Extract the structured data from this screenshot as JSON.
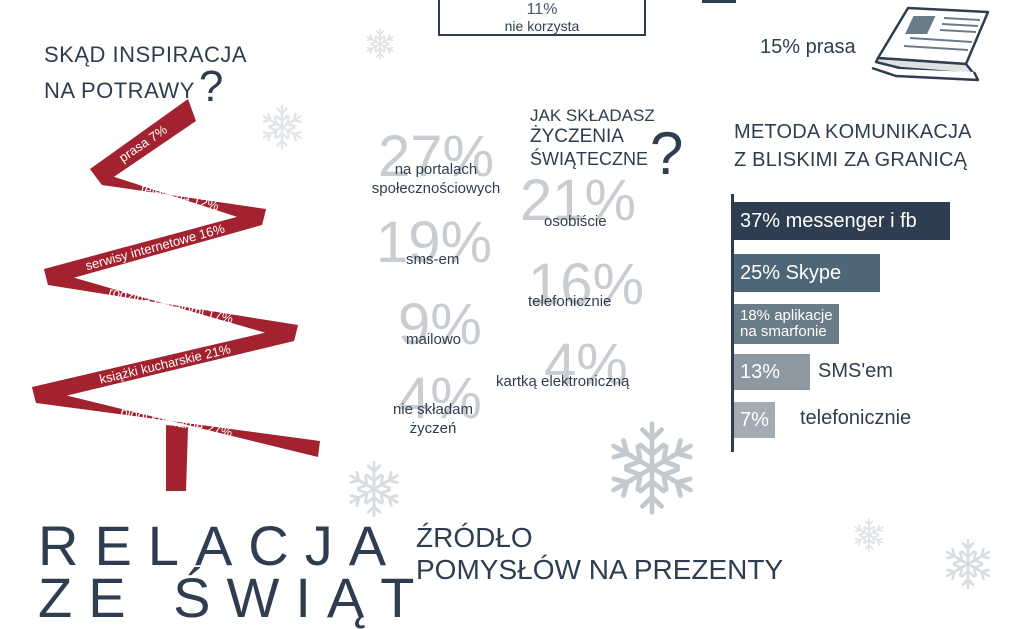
{
  "top_box": {
    "percent": "11%",
    "label": "nie korzysta"
  },
  "press": {
    "label": "15% prasa"
  },
  "inspiration": {
    "title_line1": "SKĄD INSPIRACJA",
    "title_line2": "NA POTRAWY",
    "qmark": "?",
    "tree_items": [
      {
        "label": "prasa 7%",
        "value": 7
      },
      {
        "label": "telewizja 12%",
        "value": 12
      },
      {
        "label": "serwisy internetowe 16%",
        "value": 16
      },
      {
        "label": "rodzina i znajomi 17%",
        "value": 17
      },
      {
        "label": "książki kucharskie 21%",
        "value": 21
      },
      {
        "label": "blogi kulinarne 27%",
        "value": 27
      }
    ],
    "ribbon_color": "#a32230"
  },
  "greetings": {
    "title_line1": "JAK SKŁADASZ",
    "title_line2": "ŻYCZENIA",
    "title_line3": "ŚWIĄTECZNE",
    "qmark": "?",
    "items": [
      {
        "pct": "27%",
        "caption_line1": "na portalach",
        "caption_line2": "społecznościowych"
      },
      {
        "pct": "21%",
        "caption_line1": "osobiście",
        "caption_line2": ""
      },
      {
        "pct": "19%",
        "caption_line1": "sms-em",
        "caption_line2": ""
      },
      {
        "pct": "16%",
        "caption_line1": "telefonicznie",
        "caption_line2": ""
      },
      {
        "pct": "9%",
        "caption_line1": "mailowo",
        "caption_line2": ""
      },
      {
        "pct": "4%",
        "caption_line1": "kartką elektroniczną",
        "caption_line2": ""
      },
      {
        "pct": "4%",
        "caption_line1": "nie składam",
        "caption_line2": "życzeń"
      }
    ]
  },
  "communication": {
    "title_line1": "METODA KOMUNIKACJA",
    "title_line2": "Z BLISKIMI ZA GRANICĄ",
    "bars": [
      {
        "label": "37% messenger i fb",
        "value": 37,
        "color": "#2e3e50"
      },
      {
        "label": "25% Skype",
        "value": 25,
        "color": "#4f6677"
      },
      {
        "label_line1": "18% aplikacje",
        "label_line2": "na smarfonie",
        "value": 18,
        "color": "#6b7c89"
      },
      {
        "pct": "13%",
        "label": "SMS'em",
        "value": 13,
        "color": "#8c98a2"
      },
      {
        "pct": "7%",
        "label": "telefonicznie",
        "value": 7,
        "color": "#a3acb4"
      }
    ]
  },
  "bottom": {
    "title_line1": "RELACJA",
    "title_line2": "ZE ŚWIĄT",
    "gift_title_line1": "ŹRÓDŁO",
    "gift_title_line2": "POMYSŁÓW NA PREZENTY"
  },
  "icons": {
    "snowflake": "snowflake-icon",
    "newspaper": "newspaper-icon"
  }
}
